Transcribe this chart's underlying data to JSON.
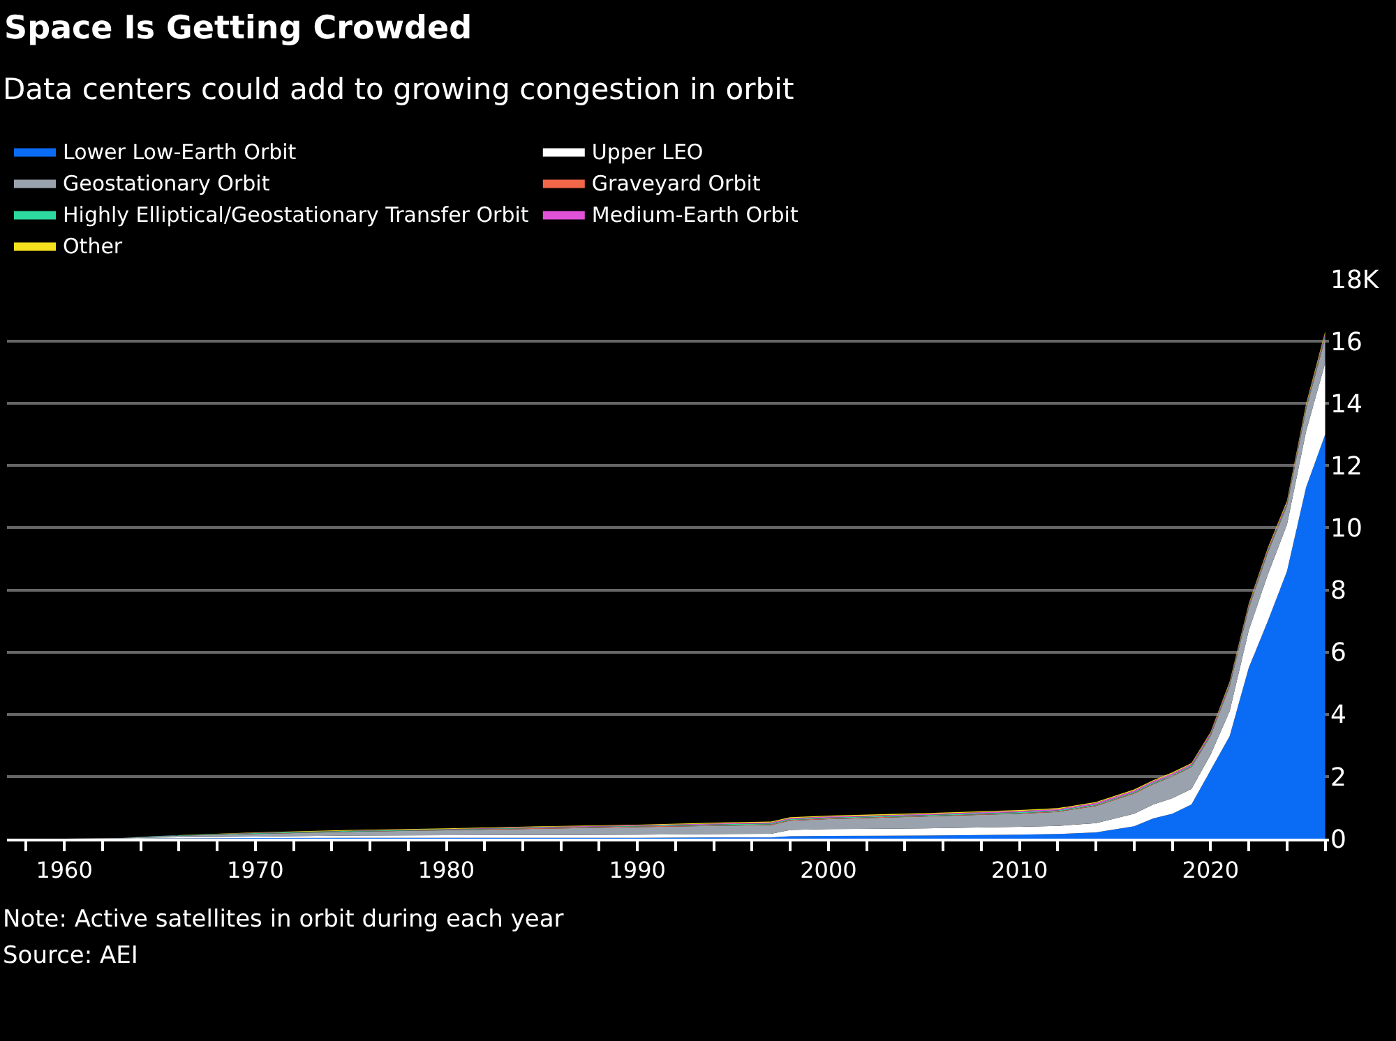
{
  "chart_data": {
    "type": "area",
    "stacked": true,
    "title": "Space Is Getting Crowded",
    "subtitle": "Data centers could add to growing congestion in orbit",
    "annotations": [
      "Note: Active satellites in orbit during each year",
      "Source: AEI"
    ],
    "x": [
      1957,
      1960,
      1963,
      1965,
      1970,
      1975,
      1980,
      1985,
      1990,
      1995,
      1997,
      1998,
      2000,
      2005,
      2010,
      2012,
      2014,
      2016,
      2017,
      2018,
      2019,
      2020,
      2021,
      2022,
      2023,
      2024,
      2025,
      2026
    ],
    "series": [
      {
        "name": "Lower Low-Earth Orbit",
        "color": "#0a6cf5",
        "values": [
          0,
          0,
          0,
          0.01,
          0.02,
          0.03,
          0.03,
          0.03,
          0.03,
          0.04,
          0.04,
          0.08,
          0.09,
          0.1,
          0.13,
          0.15,
          0.2,
          0.4,
          0.65,
          0.8,
          1.1,
          2.2,
          3.3,
          5.5,
          7.0,
          8.6,
          11.3,
          13.0
        ]
      },
      {
        "name": "Upper LEO",
        "color": "#ffffff",
        "values": [
          0,
          0,
          0.01,
          0.03,
          0.05,
          0.07,
          0.08,
          0.09,
          0.1,
          0.11,
          0.12,
          0.2,
          0.22,
          0.23,
          0.25,
          0.26,
          0.3,
          0.4,
          0.45,
          0.5,
          0.5,
          0.5,
          0.8,
          1.2,
          1.5,
          1.5,
          1.8,
          2.3
        ]
      },
      {
        "name": "Geostationary Orbit",
        "color": "#9aa3ad",
        "values": [
          0,
          0,
          0.01,
          0.04,
          0.08,
          0.12,
          0.16,
          0.2,
          0.24,
          0.27,
          0.28,
          0.3,
          0.32,
          0.38,
          0.42,
          0.45,
          0.55,
          0.65,
          0.65,
          0.7,
          0.7,
          0.6,
          0.8,
          0.7,
          0.7,
          0.6,
          0.7,
          0.8
        ]
      },
      {
        "name": "Graveyard Orbit",
        "color": "#f2674a",
        "values": [
          0,
          0,
          0,
          0,
          0.01,
          0.01,
          0.01,
          0.02,
          0.02,
          0.02,
          0.02,
          0.02,
          0.02,
          0.02,
          0.02,
          0.02,
          0.02,
          0.02,
          0.02,
          0.02,
          0.02,
          0.02,
          0.02,
          0.03,
          0.03,
          0.03,
          0.03,
          0.05
        ]
      },
      {
        "name": "Highly Elliptical/Geostationary Transfer Orbit",
        "color": "#2ed9a0",
        "values": [
          0,
          0,
          0,
          0.01,
          0.02,
          0.02,
          0.02,
          0.02,
          0.02,
          0.03,
          0.03,
          0.03,
          0.03,
          0.03,
          0.03,
          0.03,
          0.03,
          0.03,
          0.03,
          0.03,
          0.03,
          0.03,
          0.04,
          0.04,
          0.04,
          0.04,
          0.05,
          0.05
        ]
      },
      {
        "name": "Medium-Earth Orbit",
        "color": "#e052d8",
        "values": [
          0,
          0,
          0,
          0,
          0.01,
          0.01,
          0.01,
          0.02,
          0.02,
          0.03,
          0.03,
          0.03,
          0.03,
          0.03,
          0.04,
          0.04,
          0.05,
          0.05,
          0.05,
          0.05,
          0.05,
          0.05,
          0.05,
          0.05,
          0.05,
          0.05,
          0.05,
          0.06
        ]
      },
      {
        "name": "Other",
        "color": "#f5e11e",
        "values": [
          0,
          0,
          0,
          0,
          0.01,
          0.02,
          0.02,
          0.02,
          0.02,
          0.03,
          0.03,
          0.03,
          0.03,
          0.03,
          0.03,
          0.03,
          0.03,
          0.03,
          0.03,
          0.03,
          0.03,
          0.03,
          0.04,
          0.04,
          0.04,
          0.04,
          0.05,
          0.05
        ]
      }
    ],
    "xlim": [
      1957,
      2026.2
    ],
    "xticks": [
      {
        "value": 1958,
        "label": null
      },
      1960,
      {
        "value": 1962,
        "label": null
      },
      {
        "value": 1964,
        "label": null
      },
      {
        "value": 1966,
        "label": null
      },
      {
        "value": 1968,
        "label": null
      },
      1970,
      {
        "value": 1972,
        "label": null
      },
      {
        "value": 1974,
        "label": null
      },
      {
        "value": 1976,
        "label": null
      },
      {
        "value": 1978,
        "label": null
      },
      1980,
      {
        "value": 1982,
        "label": null
      },
      {
        "value": 1984,
        "label": null
      },
      {
        "value": 1986,
        "label": null
      },
      {
        "value": 1988,
        "label": null
      },
      1990,
      {
        "value": 1992,
        "label": null
      },
      {
        "value": 1994,
        "label": null
      },
      {
        "value": 1996,
        "label": null
      },
      {
        "value": 1998,
        "label": null
      },
      2000,
      {
        "value": 2002,
        "label": null
      },
      {
        "value": 2004,
        "label": null
      },
      {
        "value": 2006,
        "label": null
      },
      {
        "value": 2008,
        "label": null
      },
      2010,
      {
        "value": 2012,
        "label": null
      },
      {
        "value": 2014,
        "label": null
      },
      {
        "value": 2016,
        "label": null
      },
      {
        "value": 2018,
        "label": null
      },
      2020,
      {
        "value": 2022,
        "label": null
      },
      {
        "value": 2024,
        "label": null
      },
      {
        "value": 2026,
        "label": null
      }
    ],
    "ylim": [
      0,
      18
    ],
    "yticks": [
      0,
      2,
      4,
      6,
      8,
      10,
      12,
      14,
      16,
      {
        "value": 18,
        "label": "18K"
      }
    ],
    "grid": "y",
    "legend": "top left"
  }
}
